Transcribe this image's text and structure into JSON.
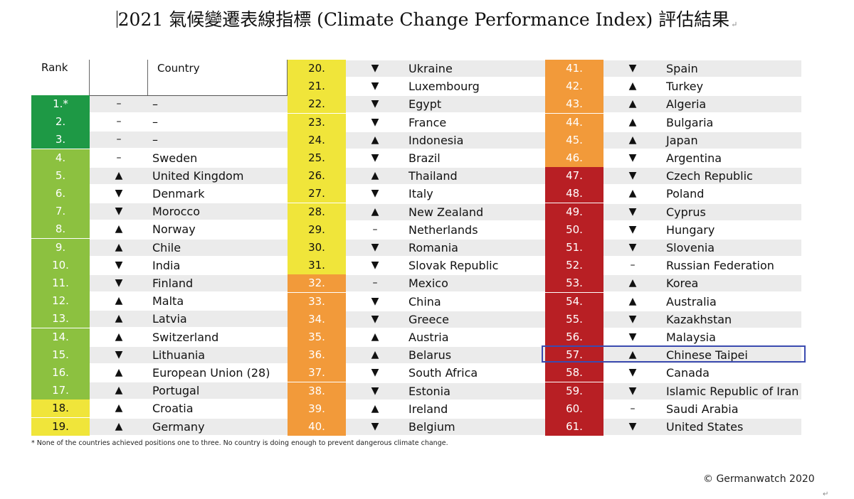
{
  "title": "2021  氣候變遷表線指標  (Climate Change Performance Index)  評估結果",
  "title_mark": "↵",
  "headers": {
    "rank": "Rank",
    "country": "Country"
  },
  "footnote": "* None of the countries achieved positions one to three. No country is doing enough to prevent dangerous climate change.",
  "copyright": "© Germanwatch 2020",
  "end_mark": "↵",
  "highlighted_rank": "57.",
  "colors": {
    "dark_green": "#1e9945",
    "green": "#8cc140",
    "yellow": "#f0e53a",
    "orange": "#f29a3a",
    "red": "#b81f24",
    "row_gray": "#ebebeb",
    "highlight_border": "#3b4bb0"
  },
  "columns": [
    [
      {
        "rank": "1.*",
        "trend": "–",
        "country": "–",
        "color": "dark_green"
      },
      {
        "rank": "2.",
        "trend": "–",
        "country": "–",
        "color": "dark_green"
      },
      {
        "rank": "3.",
        "trend": "–",
        "country": "–",
        "color": "dark_green"
      },
      {
        "rank": "4.",
        "trend": "–",
        "country": "Sweden",
        "color": "green"
      },
      {
        "rank": "5.",
        "trend": "▲",
        "country": "United Kingdom",
        "color": "green"
      },
      {
        "rank": "6.",
        "trend": "▼",
        "country": "Denmark",
        "color": "green"
      },
      {
        "rank": "7.",
        "trend": "▼",
        "country": "Morocco",
        "color": "green"
      },
      {
        "rank": "8.",
        "trend": "▲",
        "country": "Norway",
        "color": "green"
      },
      {
        "rank": "9.",
        "trend": "▲",
        "country": "Chile",
        "color": "green"
      },
      {
        "rank": "10.",
        "trend": "▼",
        "country": "India",
        "color": "green"
      },
      {
        "rank": "11.",
        "trend": "▼",
        "country": "Finland",
        "color": "green"
      },
      {
        "rank": "12.",
        "trend": "▲",
        "country": "Malta",
        "color": "green"
      },
      {
        "rank": "13.",
        "trend": "▲",
        "country": "Latvia",
        "color": "green"
      },
      {
        "rank": "14.",
        "trend": "▲",
        "country": "Switzerland",
        "color": "green"
      },
      {
        "rank": "15.",
        "trend": "▼",
        "country": "Lithuania",
        "color": "green"
      },
      {
        "rank": "16.",
        "trend": "▲",
        "country": "European Union (28)",
        "color": "green"
      },
      {
        "rank": "17.",
        "trend": "▲",
        "country": "Portugal",
        "color": "green"
      },
      {
        "rank": "18.",
        "trend": "▲",
        "country": "Croatia",
        "color": "yellow"
      },
      {
        "rank": "19.",
        "trend": "▲",
        "country": "Germany",
        "color": "yellow"
      }
    ],
    [
      {
        "rank": "20.",
        "trend": "▼",
        "country": "Ukraine",
        "color": "yellow"
      },
      {
        "rank": "21.",
        "trend": "▼",
        "country": "Luxembourg",
        "color": "yellow"
      },
      {
        "rank": "22.",
        "trend": "▼",
        "country": "Egypt",
        "color": "yellow"
      },
      {
        "rank": "23.",
        "trend": "▼",
        "country": "France",
        "color": "yellow"
      },
      {
        "rank": "24.",
        "trend": "▲",
        "country": "Indonesia",
        "color": "yellow"
      },
      {
        "rank": "25.",
        "trend": "▼",
        "country": "Brazil",
        "color": "yellow"
      },
      {
        "rank": "26.",
        "trend": "▲",
        "country": "Thailand",
        "color": "yellow"
      },
      {
        "rank": "27.",
        "trend": "▼",
        "country": "Italy",
        "color": "yellow"
      },
      {
        "rank": "28.",
        "trend": "▲",
        "country": "New Zealand",
        "color": "yellow"
      },
      {
        "rank": "29.",
        "trend": "–",
        "country": "Netherlands",
        "color": "yellow"
      },
      {
        "rank": "30.",
        "trend": "▼",
        "country": "Romania",
        "color": "yellow"
      },
      {
        "rank": "31.",
        "trend": "▼",
        "country": "Slovak Republic",
        "color": "yellow"
      },
      {
        "rank": "32.",
        "trend": "–",
        "country": "Mexico",
        "color": "orange"
      },
      {
        "rank": "33.",
        "trend": "▼",
        "country": "China",
        "color": "orange"
      },
      {
        "rank": "34.",
        "trend": "▼",
        "country": "Greece",
        "color": "orange"
      },
      {
        "rank": "35.",
        "trend": "▲",
        "country": "Austria",
        "color": "orange"
      },
      {
        "rank": "36.",
        "trend": "▲",
        "country": "Belarus",
        "color": "orange"
      },
      {
        "rank": "37.",
        "trend": "▼",
        "country": "South Africa",
        "color": "orange"
      },
      {
        "rank": "38.",
        "trend": "▼",
        "country": "Estonia",
        "color": "orange"
      },
      {
        "rank": "39.",
        "trend": "▲",
        "country": "Ireland",
        "color": "orange"
      },
      {
        "rank": "40.",
        "trend": "▼",
        "country": "Belgium",
        "color": "orange"
      }
    ],
    [
      {
        "rank": "41.",
        "trend": "▼",
        "country": "Spain",
        "color": "orange"
      },
      {
        "rank": "42.",
        "trend": "▲",
        "country": "Turkey",
        "color": "orange"
      },
      {
        "rank": "43.",
        "trend": "▲",
        "country": "Algeria",
        "color": "orange"
      },
      {
        "rank": "44.",
        "trend": "▲",
        "country": "Bulgaria",
        "color": "orange"
      },
      {
        "rank": "45.",
        "trend": "▲",
        "country": "Japan",
        "color": "orange"
      },
      {
        "rank": "46.",
        "trend": "▼",
        "country": "Argentina",
        "color": "orange"
      },
      {
        "rank": "47.",
        "trend": "▼",
        "country": "Czech Republic",
        "color": "red"
      },
      {
        "rank": "48.",
        "trend": "▲",
        "country": "Poland",
        "color": "red"
      },
      {
        "rank": "49.",
        "trend": "▼",
        "country": "Cyprus",
        "color": "red"
      },
      {
        "rank": "50.",
        "trend": "▼",
        "country": "Hungary",
        "color": "red"
      },
      {
        "rank": "51.",
        "trend": "▼",
        "country": "Slovenia",
        "color": "red"
      },
      {
        "rank": "52.",
        "trend": "–",
        "country": "Russian Federation",
        "color": "red"
      },
      {
        "rank": "53.",
        "trend": "▲",
        "country": "Korea",
        "color": "red"
      },
      {
        "rank": "54.",
        "trend": "▲",
        "country": "Australia",
        "color": "red"
      },
      {
        "rank": "55.",
        "trend": "▼",
        "country": "Kazakhstan",
        "color": "red"
      },
      {
        "rank": "56.",
        "trend": "▼",
        "country": "Malaysia",
        "color": "red"
      },
      {
        "rank": "57.",
        "trend": "▲",
        "country": "Chinese Taipei",
        "color": "red"
      },
      {
        "rank": "58.",
        "trend": "▼",
        "country": "Canada",
        "color": "red"
      },
      {
        "rank": "59.",
        "trend": "▼",
        "country": "Islamic Republic of Iran",
        "color": "red"
      },
      {
        "rank": "60.",
        "trend": "–",
        "country": "Saudi Arabia",
        "color": "red"
      },
      {
        "rank": "61.",
        "trend": "▼",
        "country": "United States",
        "color": "red"
      }
    ]
  ]
}
